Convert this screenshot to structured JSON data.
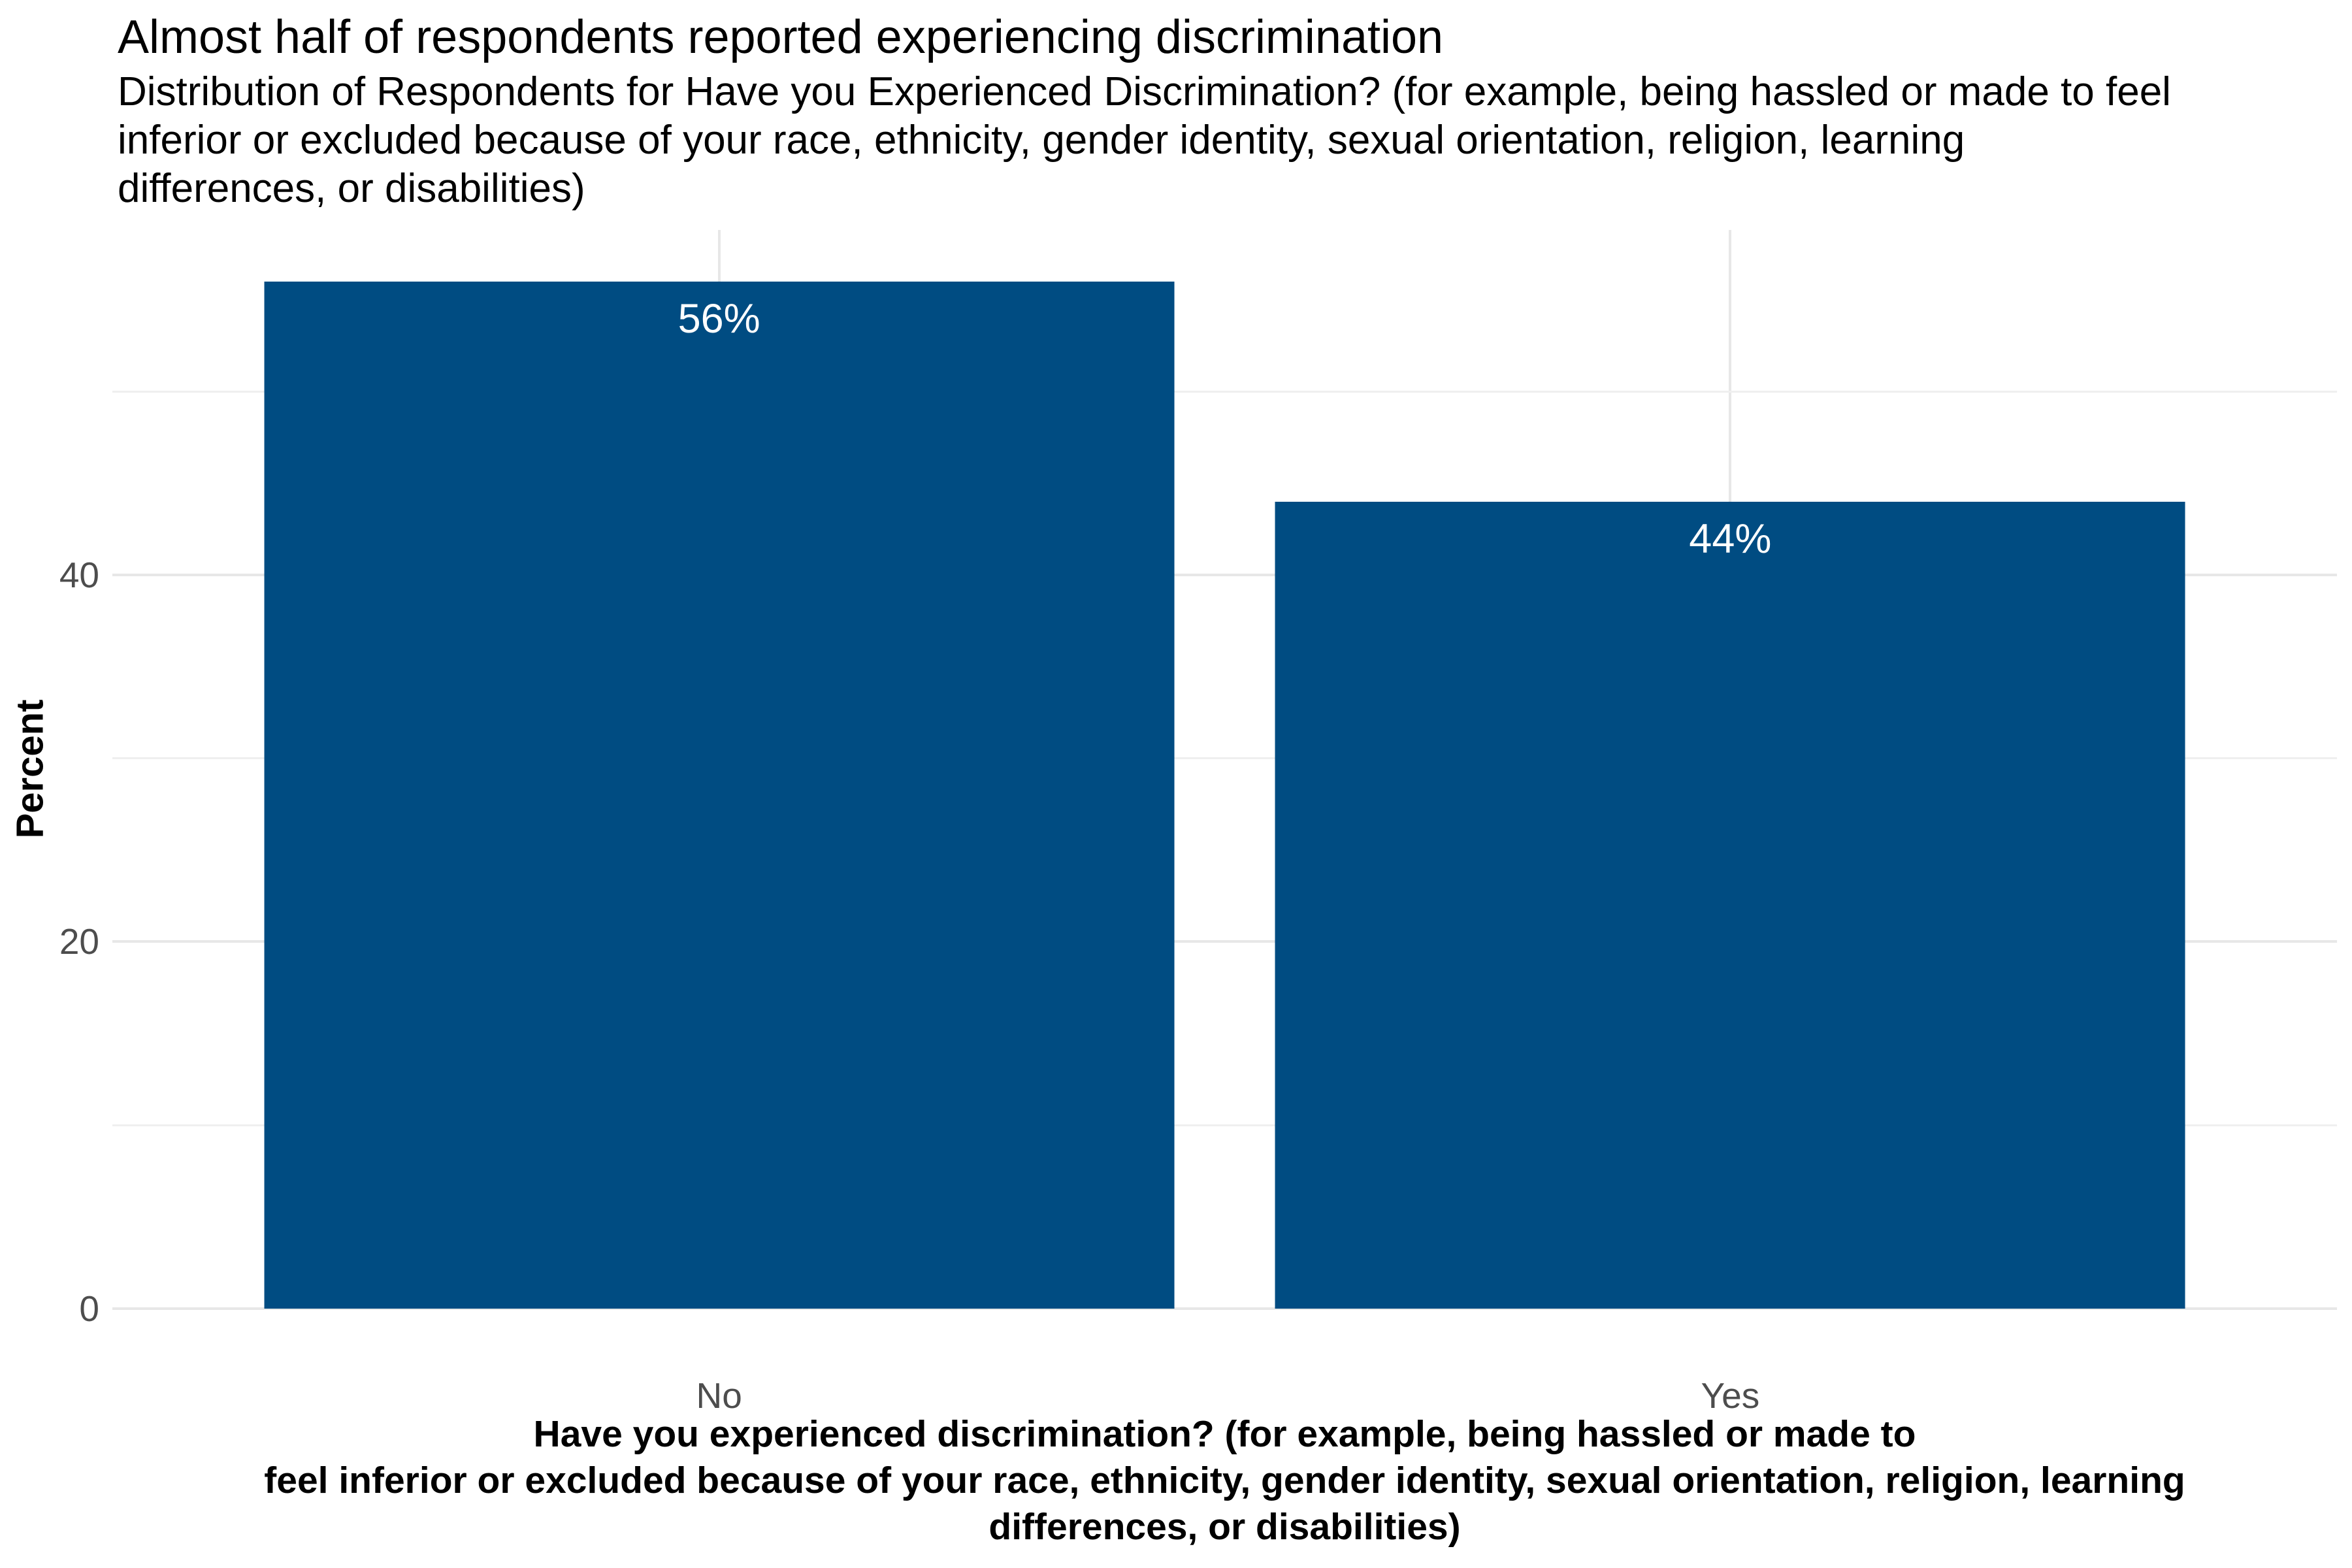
{
  "header": {
    "title": "Almost half of respondents reported experiencing discrimination",
    "subtitle": "Distribution of Respondents for Have you Experienced Discrimination? (for example, being hassled or made to feel\ninferior or excluded because of your race, ethnicity, gender identity, sexual orientation, religion, learning\ndifferences, or disabilities)"
  },
  "chart_data": {
    "type": "bar",
    "title": "Almost half of respondents reported experiencing discrimination",
    "subtitle": "Distribution of Respondents for Have you Experienced Discrimination? (for example, being hassled or made to feel inferior or excluded because of your race, ethnicity, gender identity, sexual orientation, religion, learning differences, or disabilities)",
    "categories": [
      "No",
      "Yes"
    ],
    "values": [
      56,
      44
    ],
    "value_labels": [
      "56%",
      "44%"
    ],
    "xlabel": "Have you experienced discrimination? (for example, being hassled or made to\nfeel inferior or excluded because of your race, ethnicity, gender identity, sexual orientation, religion, learning\ndifferences, or disabilities)",
    "ylabel": "Percent",
    "ylim": [
      0,
      58.8
    ],
    "yticks": [
      0,
      20,
      40
    ],
    "ytick_labels": [
      "0",
      "20",
      "40"
    ],
    "yticks_minor": [
      10,
      30,
      50
    ],
    "grid": true,
    "legend": false,
    "bar_color": "#004C82",
    "value_label_color": "#FFFFFF",
    "tick_text_color": "#4D4D4D",
    "grid_major_color": "#E7E7E7",
    "grid_minor_color": "#EFEFEF",
    "background_color": "#FFFFFF"
  }
}
